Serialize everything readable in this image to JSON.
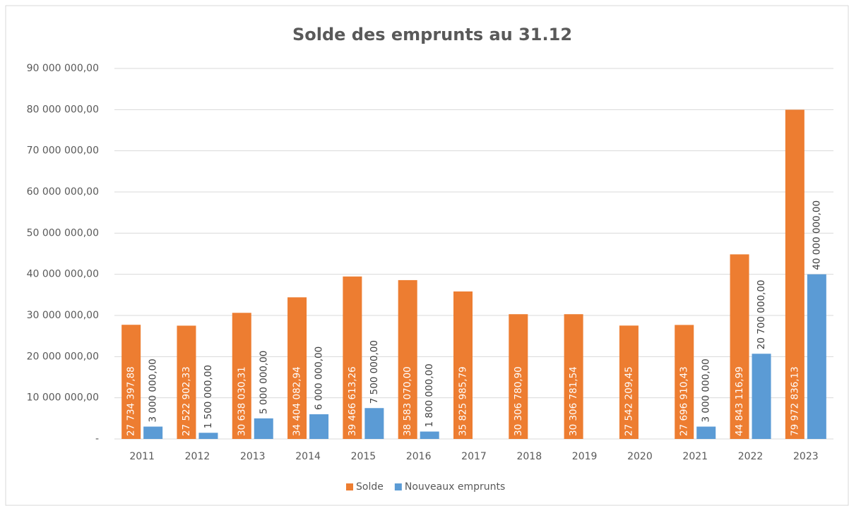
{
  "chart_data": {
    "type": "bar",
    "title": "Solde des emprunts au 31.12",
    "categories": [
      "2011",
      "2012",
      "2013",
      "2014",
      "2015",
      "2016",
      "2017",
      "2018",
      "2019",
      "2020",
      "2021",
      "2022",
      "2023"
    ],
    "series": [
      {
        "name": "Solde",
        "color": "#ed7d31",
        "label_position": "inside",
        "values": [
          27734397.88,
          27522902.33,
          30638030.31,
          34404082.94,
          39466613.26,
          38583070.0,
          35825985.79,
          30306780.9,
          30306781.54,
          27542209.45,
          27696910.43,
          44843116.99,
          79972836.13
        ],
        "value_labels": [
          "27 734 397,88",
          "27 522 902,33",
          "30 638 030,31",
          "34 404 082,94",
          "39 466 613,26",
          "38 583 070,00",
          "35 825 985,79",
          "30 306 780,90",
          "30 306 781,54",
          "27 542 209,45",
          "27 696 910,43",
          "44 843 116,99",
          "79 972 836,13"
        ]
      },
      {
        "name": "Nouveaux emprunts",
        "color": "#5b9bd5",
        "label_position": "outside",
        "values": [
          3000000,
          1500000,
          5000000,
          6000000,
          7500000,
          1800000,
          null,
          null,
          null,
          null,
          3000000,
          20700000,
          40000000
        ],
        "value_labels": [
          "3 000 000,00",
          "1 500 000,00",
          "5 000 000,00",
          "6 000 000,00",
          "7 500 000,00",
          "1 800 000,00",
          null,
          null,
          null,
          null,
          "3 000 000,00",
          "20 700 000,00",
          "40 000 000,00"
        ]
      }
    ],
    "ylim": [
      0,
      90000000
    ],
    "yticks": [
      {
        "value": 0,
        "label": "-"
      },
      {
        "value": 10000000,
        "label": "10 000 000,00"
      },
      {
        "value": 20000000,
        "label": "20 000 000,00"
      },
      {
        "value": 30000000,
        "label": "30 000 000,00"
      },
      {
        "value": 40000000,
        "label": "40 000 000,00"
      },
      {
        "value": 50000000,
        "label": "50 000 000,00"
      },
      {
        "value": 60000000,
        "label": "60 000 000,00"
      },
      {
        "value": 70000000,
        "label": "70 000 000,00"
      },
      {
        "value": 80000000,
        "label": "80 000 000,00"
      },
      {
        "value": 90000000,
        "label": "90 000 000,00"
      }
    ],
    "grid": true,
    "legend": "bottom"
  }
}
